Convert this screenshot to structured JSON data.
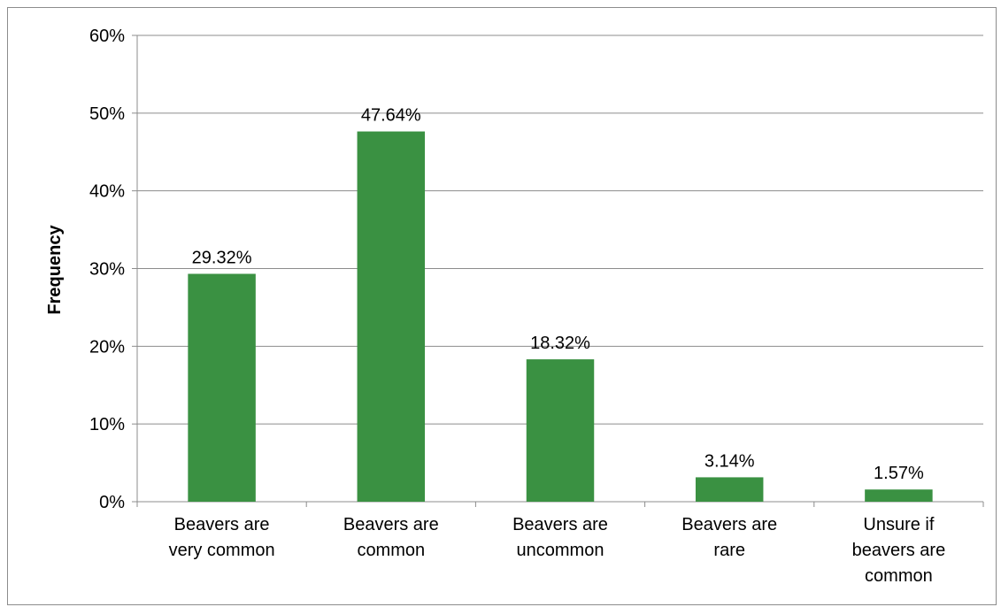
{
  "chart_data": {
    "type": "bar",
    "categories": [
      [
        "Beavers are",
        "very common"
      ],
      [
        "Beavers are",
        "common"
      ],
      [
        "Beavers are",
        "uncommon"
      ],
      [
        "Beavers are",
        "rare"
      ],
      [
        "Unsure if",
        "beavers are",
        "common"
      ]
    ],
    "values": [
      29.32,
      47.64,
      18.32,
      3.14,
      1.57
    ],
    "data_labels": [
      "29.32%",
      "47.64%",
      "18.32%",
      "3.14%",
      "1.57%"
    ],
    "ylabel": "Frequency",
    "xlabel": "",
    "ylim": [
      0,
      60
    ],
    "yticks": [
      0,
      10,
      20,
      30,
      40,
      50,
      60
    ],
    "ytick_labels": [
      "0%",
      "10%",
      "20%",
      "30%",
      "40%",
      "50%",
      "60%"
    ],
    "grid": true,
    "legend": "none",
    "bar_color": "#3a9142",
    "gridline_color": "#8c8c8c"
  }
}
